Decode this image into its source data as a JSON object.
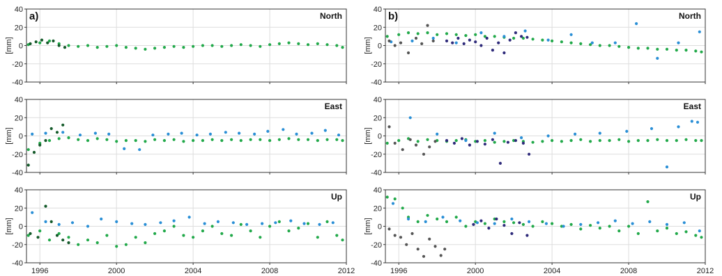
{
  "colors": {
    "green": "#22a94a",
    "blue": "#2a8fd6",
    "dark_green": "#145a2a",
    "navy": "#2e2a7a",
    "gray": "#555555",
    "grid": "#dddddd",
    "axis": "#333333"
  },
  "chart_data": [
    {
      "type": "scatter",
      "panel": "a)",
      "title": "North",
      "ylabel": "[mm]",
      "xlim": [
        1995.3,
        2012.0
      ],
      "ylim": [
        -40,
        40
      ],
      "xticks": [
        1996,
        2000,
        2004,
        2008,
        2012
      ],
      "yticks": [
        -40,
        -20,
        0,
        20,
        40
      ],
      "grid": true,
      "show_x_tick_labels": false,
      "series": [
        {
          "color": "green",
          "x": [
            1995.4,
            1996.0,
            1996.5,
            1997.0,
            1997.5,
            1998.0,
            1998.5,
            1999.0,
            1999.5,
            2000.0,
            2000.5,
            2001.0,
            2001.5,
            2002.0,
            2002.5,
            2003.0,
            2003.5,
            2004.0,
            2004.5,
            2005.0,
            2005.5,
            2006.0,
            2006.5,
            2007.0,
            2007.5,
            2008.0,
            2008.5,
            2009.0,
            2009.5,
            2010.0,
            2010.5,
            2011.0,
            2011.5,
            2011.8
          ],
          "y": [
            1,
            3,
            5,
            2,
            0,
            -1,
            0,
            -2,
            -1,
            0,
            -2,
            -3,
            -4,
            -3,
            -2,
            -1,
            -2,
            -1,
            0,
            0,
            -1,
            0,
            1,
            0,
            -1,
            1,
            2,
            3,
            2,
            1,
            2,
            1,
            0,
            -2
          ]
        },
        {
          "color": "dark_green",
          "x": [
            1995.5,
            1995.8,
            1996.1,
            1996.4,
            1996.7,
            1997.0,
            1997.3
          ],
          "y": [
            2,
            4,
            6,
            3,
            5,
            0,
            -2
          ]
        }
      ]
    },
    {
      "type": "scatter",
      "panel": "",
      "title": "East",
      "ylabel": "[mm]",
      "xlim": [
        1995.3,
        2012.0
      ],
      "ylim": [
        -40,
        40
      ],
      "xticks": [
        1996,
        2000,
        2004,
        2008,
        2012
      ],
      "yticks": [
        -40,
        -20,
        0,
        20,
        40
      ],
      "grid": true,
      "show_x_tick_labels": false,
      "series": [
        {
          "color": "green",
          "x": [
            1995.4,
            1996.0,
            1996.5,
            1997.0,
            1997.5,
            1998.0,
            1998.5,
            1999.0,
            1999.5,
            2000.0,
            2000.5,
            2001.0,
            2001.5,
            2002.0,
            2002.5,
            2003.0,
            2003.5,
            2004.0,
            2004.5,
            2005.0,
            2005.5,
            2006.0,
            2006.5,
            2007.0,
            2007.5,
            2008.0,
            2008.5,
            2009.0,
            2009.5,
            2010.0,
            2010.5,
            2011.0,
            2011.5,
            2011.8
          ],
          "y": [
            -15,
            -8,
            -5,
            -3,
            -2,
            -4,
            -5,
            -3,
            -4,
            -6,
            -5,
            -5,
            -6,
            -4,
            -5,
            -4,
            -6,
            -5,
            -5,
            -4,
            -5,
            -4,
            -5,
            -4,
            -4,
            -5,
            -4,
            -3,
            -4,
            -4,
            -5,
            -4,
            -4,
            -5
          ]
        },
        {
          "color": "blue",
          "x": [
            1995.6,
            1996.3,
            1997.2,
            1998.1,
            1998.9,
            1999.6,
            2000.4,
            2001.2,
            2001.9,
            2002.7,
            2003.4,
            2004.2,
            2004.9,
            2005.7,
            2006.4,
            2007.2,
            2007.9,
            2008.7,
            2009.4,
            2010.2,
            2010.9,
            2011.6
          ],
          "y": [
            2,
            3,
            4,
            1,
            3,
            2,
            -14,
            -15,
            1,
            2,
            3,
            1,
            2,
            4,
            3,
            2,
            5,
            7,
            2,
            3,
            6,
            1
          ]
        },
        {
          "color": "dark_green",
          "x": [
            1995.4,
            1995.7,
            1996.0,
            1996.3,
            1996.6,
            1996.9,
            1997.2
          ],
          "y": [
            -32,
            -18,
            -10,
            -5,
            8,
            4,
            12
          ]
        }
      ]
    },
    {
      "type": "scatter",
      "panel": "",
      "title": "Up",
      "ylabel": "[mm]",
      "xlim": [
        1995.3,
        2012.0
      ],
      "ylim": [
        -40,
        40
      ],
      "xticks": [
        1996,
        2000,
        2004,
        2008,
        2012
      ],
      "yticks": [
        -40,
        -20,
        0,
        20,
        40
      ],
      "grid": true,
      "show_x_tick_labels": true,
      "series": [
        {
          "color": "green",
          "x": [
            1995.4,
            1996.0,
            1996.5,
            1997.0,
            1997.5,
            1998.0,
            1998.5,
            1999.0,
            1999.5,
            2000.0,
            2000.5,
            2001.0,
            2001.5,
            2002.0,
            2002.5,
            2003.0,
            2003.5,
            2004.0,
            2004.5,
            2005.0,
            2005.5,
            2006.0,
            2006.5,
            2007.0,
            2007.5,
            2008.0,
            2008.5,
            2009.0,
            2009.5,
            2010.0,
            2010.5,
            2011.0,
            2011.5,
            2011.8
          ],
          "y": [
            -10,
            -5,
            -15,
            -8,
            -12,
            -20,
            -15,
            -18,
            -10,
            -22,
            -20,
            -12,
            -18,
            -8,
            -5,
            0,
            -10,
            -12,
            -5,
            0,
            -8,
            -10,
            2,
            -5,
            -12,
            0,
            5,
            -5,
            -2,
            3,
            -12,
            5,
            -10,
            -15
          ]
        },
        {
          "color": "blue",
          "x": [
            1995.6,
            1996.3,
            1997.0,
            1997.7,
            1998.5,
            1999.2,
            2000.0,
            2000.8,
            2001.5,
            2002.3,
            2003.0,
            2003.8,
            2004.6,
            2005.3,
            2006.1,
            2006.8,
            2007.6,
            2008.3,
            2009.1,
            2009.8,
            2010.6,
            2011.3
          ],
          "y": [
            15,
            5,
            2,
            4,
            0,
            8,
            5,
            3,
            2,
            4,
            6,
            10,
            3,
            5,
            4,
            2,
            3,
            4,
            6,
            3,
            2,
            4
          ]
        },
        {
          "color": "dark_green",
          "x": [
            1995.5,
            1995.9,
            1996.3,
            1996.6,
            1996.9,
            1997.2,
            1997.5
          ],
          "y": [
            -8,
            -12,
            22,
            5,
            -10,
            -15,
            -18
          ]
        }
      ]
    },
    {
      "type": "scatter",
      "panel": "b)",
      "title": "North",
      "ylabel": "[mm]",
      "xlim": [
        1995.3,
        2012.0
      ],
      "ylim": [
        -40,
        40
      ],
      "xticks": [
        1996,
        2000,
        2004,
        2008,
        2012
      ],
      "yticks": [
        -40,
        -20,
        0,
        20,
        40
      ],
      "grid": true,
      "show_x_tick_labels": false,
      "series": [
        {
          "color": "green",
          "x": [
            1995.4,
            1996.0,
            1996.5,
            1997.0,
            1997.5,
            1998.0,
            1998.5,
            1999.0,
            1999.5,
            2000.0,
            2000.5,
            2001.0,
            2001.5,
            2002.0,
            2002.5,
            2003.0,
            2003.5,
            2004.0,
            2004.5,
            2005.0,
            2005.5,
            2006.0,
            2006.5,
            2007.0,
            2007.5,
            2008.0,
            2008.5,
            2009.0,
            2009.5,
            2010.0,
            2010.5,
            2011.0,
            2011.5,
            2011.8
          ],
          "y": [
            10,
            12,
            14,
            13,
            14,
            12,
            13,
            12,
            11,
            12,
            10,
            10,
            9,
            8,
            8,
            7,
            6,
            5,
            4,
            3,
            2,
            1,
            0,
            0,
            -1,
            -2,
            -3,
            -3,
            -4,
            -4,
            -5,
            -5,
            -6,
            -7
          ]
        },
        {
          "color": "blue",
          "x": [
            1995.6,
            1996.7,
            1997.8,
            1999.0,
            2000.3,
            2001.5,
            2002.6,
            2003.8,
            2005.0,
            2006.1,
            2007.3,
            2008.4,
            2009.5,
            2010.6,
            2011.7
          ],
          "y": [
            4,
            5,
            8,
            3,
            14,
            10,
            16,
            6,
            12,
            3,
            3,
            24,
            -14,
            3,
            15
          ]
        },
        {
          "color": "navy",
          "x": [
            1998.5,
            1998.8,
            1999.1,
            1999.4,
            1999.7,
            2000.0,
            2000.3,
            2000.6,
            2000.9,
            2001.2,
            2001.5,
            2001.8,
            2002.1,
            2002.4,
            2002.7
          ],
          "y": [
            5,
            3,
            8,
            2,
            6,
            4,
            0,
            8,
            -5,
            3,
            -8,
            6,
            14,
            10,
            9
          ]
        },
        {
          "color": "gray",
          "x": [
            1995.5,
            1995.8,
            1996.1,
            1996.5,
            1996.9,
            1997.2,
            1997.5,
            1997.8
          ],
          "y": [
            5,
            0,
            3,
            -8,
            8,
            2,
            22,
            5
          ]
        }
      ]
    },
    {
      "type": "scatter",
      "panel": "",
      "title": "East",
      "ylabel": "[mm]",
      "xlim": [
        1995.3,
        2012.0
      ],
      "ylim": [
        -40,
        40
      ],
      "xticks": [
        1996,
        2000,
        2004,
        2008,
        2012
      ],
      "yticks": [
        -40,
        -20,
        0,
        20,
        40
      ],
      "grid": true,
      "show_x_tick_labels": false,
      "series": [
        {
          "color": "green",
          "x": [
            1995.4,
            1996.0,
            1996.5,
            1997.0,
            1997.5,
            1998.0,
            1998.5,
            1999.0,
            1999.5,
            2000.0,
            2000.5,
            2001.0,
            2001.5,
            2002.0,
            2002.5,
            2003.0,
            2003.5,
            2004.0,
            2004.5,
            2005.0,
            2005.5,
            2006.0,
            2006.5,
            2007.0,
            2007.5,
            2008.0,
            2008.5,
            2009.0,
            2009.5,
            2010.0,
            2010.5,
            2011.0,
            2011.5,
            2011.8
          ],
          "y": [
            -8,
            -5,
            -3,
            -6,
            -4,
            -5,
            -6,
            -5,
            -4,
            -6,
            -5,
            -7,
            -6,
            -5,
            -6,
            -7,
            -6,
            -5,
            -6,
            -5,
            -4,
            -6,
            -5,
            -5,
            -4,
            -6,
            -5,
            -5,
            -4,
            -5,
            -5,
            -4,
            -5,
            -5
          ]
        },
        {
          "color": "blue",
          "x": [
            1996.6,
            1998.0,
            1999.5,
            2001.0,
            2002.4,
            2003.8,
            2005.2,
            2006.5,
            2007.9,
            2009.2,
            2010.0,
            2010.6,
            2011.3,
            2011.6
          ],
          "y": [
            20,
            2,
            -5,
            3,
            -2,
            0,
            2,
            3,
            5,
            8,
            -34,
            10,
            16,
            15
          ]
        },
        {
          "color": "navy",
          "x": [
            1998.5,
            1998.9,
            1999.3,
            1999.7,
            2000.1,
            2000.5,
            2000.9,
            2001.3,
            2001.7,
            2002.1,
            2002.5,
            2002.8
          ],
          "y": [
            -5,
            -8,
            -3,
            -10,
            -6,
            -9,
            -4,
            -30,
            -7,
            -5,
            -8,
            -20
          ]
        },
        {
          "color": "gray",
          "x": [
            1995.5,
            1995.8,
            1996.2,
            1996.6,
            1996.9,
            1997.3,
            1997.6,
            1997.9
          ],
          "y": [
            10,
            -8,
            -15,
            -4,
            -10,
            -20,
            -12,
            -6
          ]
        }
      ]
    },
    {
      "type": "scatter",
      "panel": "",
      "title": "Up",
      "ylabel": "[mm]",
      "xlim": [
        1995.3,
        2012.0
      ],
      "ylim": [
        -40,
        40
      ],
      "xticks": [
        1996,
        2000,
        2004,
        2008,
        2012
      ],
      "yticks": [
        -40,
        -20,
        0,
        20,
        40
      ],
      "grid": true,
      "show_x_tick_labels": true,
      "series": [
        {
          "color": "green",
          "x": [
            1995.4,
            1995.8,
            1996.2,
            1996.5,
            1997.0,
            1997.5,
            1998.0,
            1998.5,
            1999.0,
            1999.5,
            2000.0,
            2000.5,
            2001.0,
            2001.5,
            2002.0,
            2002.5,
            2003.0,
            2003.5,
            2004.0,
            2004.5,
            2005.0,
            2005.5,
            2006.0,
            2006.5,
            2007.0,
            2007.5,
            2008.0,
            2008.5,
            2009.0,
            2009.5,
            2010.0,
            2010.5,
            2011.0,
            2011.5,
            2011.8
          ],
          "y": [
            32,
            30,
            20,
            10,
            5,
            12,
            8,
            5,
            10,
            0,
            5,
            3,
            8,
            5,
            4,
            2,
            0,
            5,
            3,
            0,
            2,
            -3,
            1,
            -2,
            0,
            -5,
            0,
            -8,
            27,
            -5,
            -2,
            -8,
            -6,
            -10,
            -12
          ]
        },
        {
          "color": "blue",
          "x": [
            1995.7,
            1996.5,
            1997.4,
            1998.3,
            1999.2,
            2000.1,
            2001.0,
            2001.9,
            2002.8,
            2003.7,
            2004.6,
            2005.5,
            2006.4,
            2007.3,
            2008.2,
            2009.1,
            2010.0,
            2010.9,
            2011.7
          ],
          "y": [
            25,
            8,
            5,
            10,
            6,
            4,
            3,
            8,
            5,
            3,
            0,
            2,
            4,
            6,
            3,
            5,
            2,
            4,
            -5
          ]
        },
        {
          "color": "navy",
          "x": [
            1999.9,
            2000.3,
            2000.7,
            2001.1,
            2001.5,
            2001.9,
            2002.3,
            2002.7
          ],
          "y": [
            2,
            6,
            -2,
            8,
            1,
            -8,
            4,
            -10
          ]
        },
        {
          "color": "gray",
          "x": [
            1995.5,
            1995.8,
            1996.1,
            1996.4,
            1996.7,
            1997.0,
            1997.3,
            1997.6,
            1997.9,
            1998.2,
            1998.4
          ],
          "y": [
            -3,
            -10,
            -12,
            -20,
            -8,
            -25,
            -33,
            -14,
            -22,
            -32,
            -25
          ]
        }
      ]
    }
  ]
}
